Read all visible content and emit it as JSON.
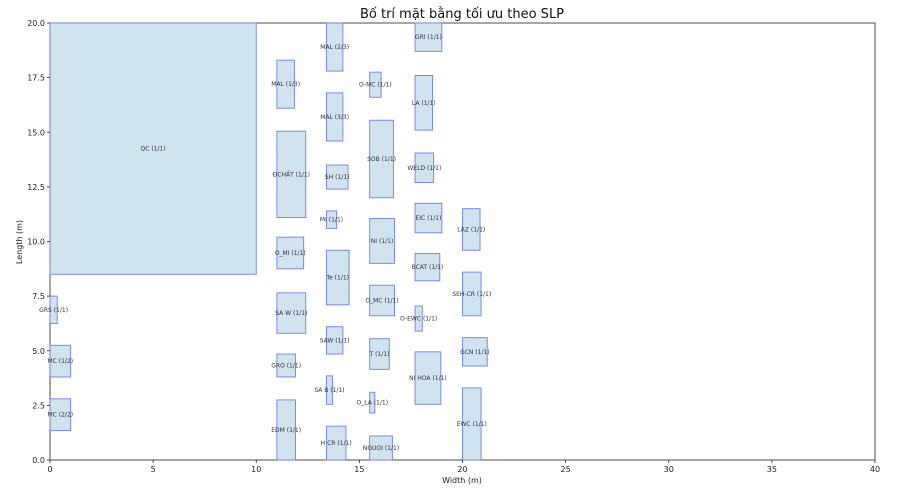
{
  "chart_data": {
    "type": "bar",
    "title": "Bố trí mặt bằng tối ưu theo SLP",
    "xlabel": "Width (m)",
    "ylabel": "Length (m)",
    "xlim": [
      0,
      40
    ],
    "ylim": [
      0,
      20
    ],
    "xticks": [
      0,
      5,
      10,
      15,
      20,
      25,
      30,
      35,
      40
    ],
    "yticks": [
      0.0,
      2.5,
      5.0,
      7.5,
      10.0,
      12.5,
      15.0,
      17.5,
      20.0
    ],
    "ytick_labels": [
      "0.0",
      "2.5",
      "5.0",
      "7.5",
      "10.0",
      "12.5",
      "15.0",
      "17.5",
      "20.0"
    ],
    "grid": false,
    "fill_color": "#cfe4ee",
    "edge_color": "#6f7ff0",
    "rects": [
      {
        "label": "QC (1/1)",
        "x": 0.0,
        "y": 8.5,
        "w": 10.0,
        "h": 11.5
      },
      {
        "label": "GRS (1/1)",
        "x": 0.0,
        "y": 6.25,
        "w": 0.35,
        "h": 1.25
      },
      {
        "label": "MC (1/2)",
        "x": 0.0,
        "y": 3.8,
        "w": 1.0,
        "h": 1.45
      },
      {
        "label": "MC (2/2)",
        "x": 0.0,
        "y": 1.35,
        "w": 1.0,
        "h": 1.45
      },
      {
        "label": "MAL (1/3)",
        "x": 11.0,
        "y": 16.1,
        "w": 0.85,
        "h": 2.2
      },
      {
        "label": "ĐCHẤT (1/1)",
        "x": 11.0,
        "y": 11.1,
        "w": 1.4,
        "h": 3.95
      },
      {
        "label": "O_MI (1/1)",
        "x": 11.0,
        "y": 8.75,
        "w": 1.3,
        "h": 1.45
      },
      {
        "label": "SA W (1/1)",
        "x": 11.0,
        "y": 5.8,
        "w": 1.4,
        "h": 1.85
      },
      {
        "label": "GRO (1/1)",
        "x": 11.0,
        "y": 3.8,
        "w": 0.9,
        "h": 1.05
      },
      {
        "label": "EDM (1/1)",
        "x": 11.0,
        "y": 0.0,
        "w": 0.9,
        "h": 2.75
      },
      {
        "label": "MAL (2/3)",
        "x": 13.4,
        "y": 17.8,
        "w": 0.8,
        "h": 2.2
      },
      {
        "label": "MAL (3/3)",
        "x": 13.4,
        "y": 14.6,
        "w": 0.8,
        "h": 2.2
      },
      {
        "label": "SH (1/1)",
        "x": 13.4,
        "y": 12.4,
        "w": 1.05,
        "h": 1.1
      },
      {
        "label": "MI (1/1)",
        "x": 13.4,
        "y": 10.6,
        "w": 0.5,
        "h": 0.8
      },
      {
        "label": "Te (1/1)",
        "x": 13.4,
        "y": 7.1,
        "w": 1.1,
        "h": 2.5
      },
      {
        "label": "SAW (1/1)",
        "x": 13.4,
        "y": 4.85,
        "w": 0.8,
        "h": 1.25
      },
      {
        "label": "SA B (1/1)",
        "x": 13.4,
        "y": 2.55,
        "w": 0.3,
        "h": 1.3
      },
      {
        "label": "H CR (1/1)",
        "x": 13.4,
        "y": 0.0,
        "w": 0.95,
        "h": 1.55
      },
      {
        "label": "O-MC (1/1)",
        "x": 15.5,
        "y": 16.6,
        "w": 0.55,
        "h": 1.15
      },
      {
        "label": "SOB (1/1)",
        "x": 15.5,
        "y": 12.0,
        "w": 1.15,
        "h": 3.55
      },
      {
        "label": "NI (1/1)",
        "x": 15.5,
        "y": 9.0,
        "w": 1.2,
        "h": 2.05
      },
      {
        "label": "O_MC (1/1)",
        "x": 15.5,
        "y": 6.6,
        "w": 1.2,
        "h": 1.4
      },
      {
        "label": "T (1/1)",
        "x": 15.5,
        "y": 4.15,
        "w": 0.95,
        "h": 1.4
      },
      {
        "label": "O_LA (1/1)",
        "x": 15.5,
        "y": 2.15,
        "w": 0.25,
        "h": 0.95
      },
      {
        "label": "NGUOI (1/1)",
        "x": 15.5,
        "y": 0.0,
        "w": 1.1,
        "h": 1.1
      },
      {
        "label": "GRI (1/1)",
        "x": 17.7,
        "y": 18.7,
        "w": 1.3,
        "h": 1.3
      },
      {
        "label": "LA (1/1)",
        "x": 17.7,
        "y": 15.1,
        "w": 0.85,
        "h": 2.5
      },
      {
        "label": "WELD (1/1)",
        "x": 17.7,
        "y": 12.7,
        "w": 0.9,
        "h": 1.35
      },
      {
        "label": "EIC (1/1)",
        "x": 17.7,
        "y": 10.4,
        "w": 1.3,
        "h": 1.35
      },
      {
        "label": "BCAT (1/1)",
        "x": 17.7,
        "y": 8.2,
        "w": 1.2,
        "h": 1.25
      },
      {
        "label": "O-EWC (1/1)",
        "x": 17.7,
        "y": 5.9,
        "w": 0.35,
        "h": 1.15
      },
      {
        "label": "NI HOA (1/1)",
        "x": 17.7,
        "y": 2.55,
        "w": 1.25,
        "h": 2.4
      },
      {
        "label": "LAZ (1/1)",
        "x": 20.0,
        "y": 9.6,
        "w": 0.85,
        "h": 1.9
      },
      {
        "label": "SEH-CR (1/1)",
        "x": 20.0,
        "y": 6.6,
        "w": 0.9,
        "h": 2.0
      },
      {
        "label": "GCN (1/1)",
        "x": 20.0,
        "y": 4.3,
        "w": 1.2,
        "h": 1.3
      },
      {
        "label": "EWC (1/1)",
        "x": 20.0,
        "y": 0.0,
        "w": 0.9,
        "h": 3.3
      }
    ]
  }
}
